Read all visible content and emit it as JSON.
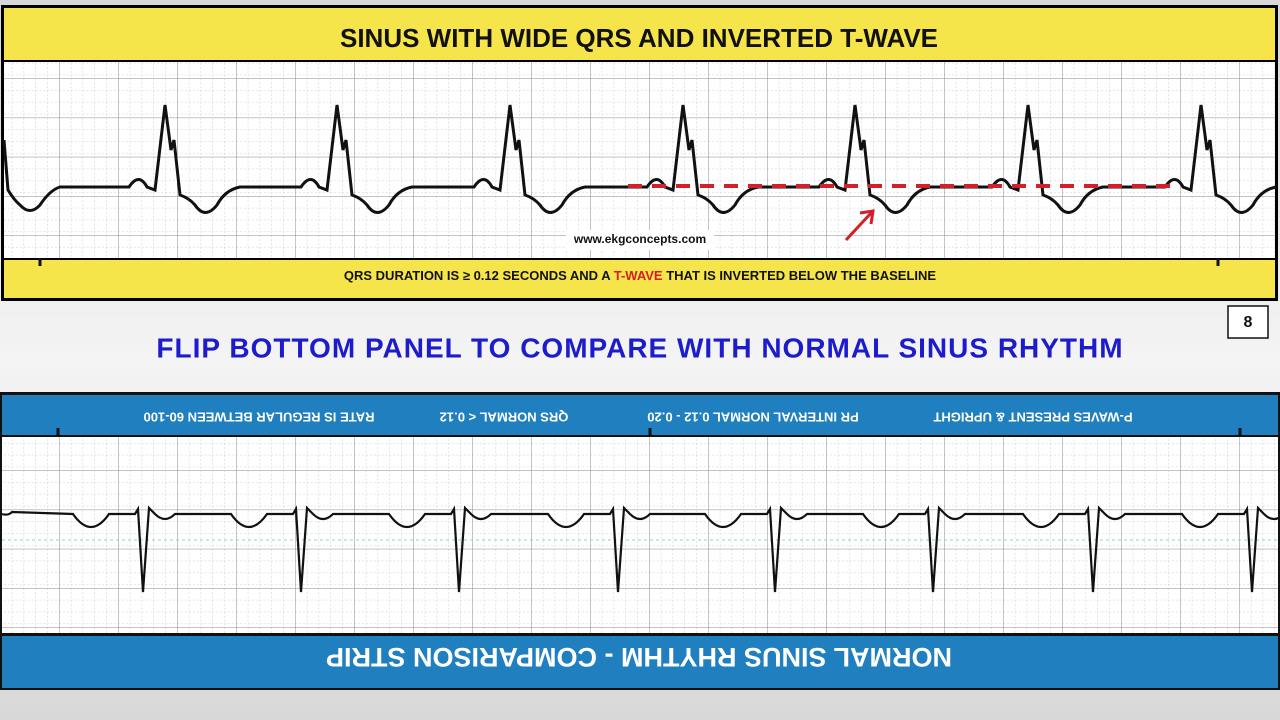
{
  "top_panel": {
    "title": "SINUS WITH WIDE QRS AND INVERTED T-WAVE",
    "website": "www.ekgconcepts.com",
    "caption": {
      "before": "QRS DURATION IS ≥ 0.12 SECONDS AND A ",
      "highlight": "T-WAVE",
      "after": " THAT IS INVERTED BELOW THE BASELINE"
    }
  },
  "page_number": "8",
  "instruction": "FLIP BOTTOM PANEL TO COMPARE WITH NORMAL SINUS RHYTHM",
  "bottom_panel": {
    "criteria": [
      "P-WAVES PRESENT & UPRIGHT",
      "PR INTERVAL NORMAL 0.12 - 0.20",
      "QRS NORMAL < 0.12",
      "RATE IS REGULAR BETWEEN 60-100"
    ],
    "title": "NORMAL SINUS RHYTHM - COMPARISON STRIP"
  }
}
